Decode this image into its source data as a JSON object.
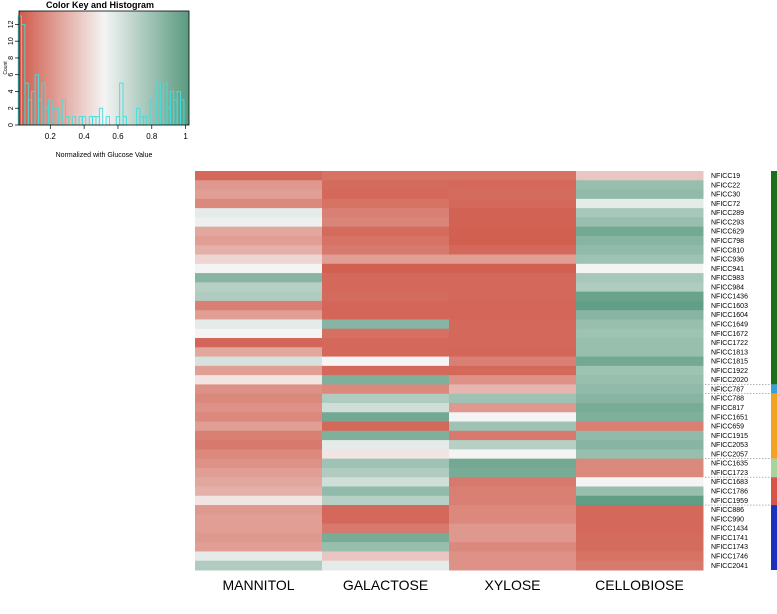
{
  "key": {
    "title": "Color Key and Histogram",
    "xlabel": "Normalized with Glucose Value",
    "ylabel": "Count",
    "xticks": [
      "0.2",
      "0.4",
      "0.6",
      "0.8",
      "1"
    ],
    "yticks": [
      "0",
      "2",
      "4",
      "6",
      "8",
      "10",
      "12"
    ],
    "histogram_color": "#3ee0de"
  },
  "chart_data": {
    "type": "heatmap",
    "colors": {
      "low": "#d05a4a",
      "mid": "#f4f4f4",
      "high": "#5a9a80"
    },
    "columns": [
      "MANNITOL",
      "GALACTOSE",
      "XYLOSE",
      "CELLOBIOSE"
    ],
    "rows": [
      "NFICC19",
      "NFICC22",
      "NFICC30",
      "NFICC72",
      "NFICC289",
      "NFICC293",
      "NFICC629",
      "NFICC798",
      "NFICC810",
      "NFICC936",
      "NFICC941",
      "NFICC983",
      "NFICC984",
      "NFICC1436",
      "NFICC1603",
      "NFICC1604",
      "NFICC1649",
      "NFICC1672",
      "NFICC1722",
      "NFICC1813",
      "NFICC1815",
      "NFICC1922",
      "NFICC2020",
      "NFICC787",
      "NFICC788",
      "NFICC817",
      "NFICC1651",
      "NFICC659",
      "NFICC1915",
      "NFICC2053",
      "NFICC2057",
      "NFICC1635",
      "NFICC1723",
      "NFICC1683",
      "NFICC1786",
      "NFICC1959",
      "NFICC886",
      "NFICC990",
      "NFICC1434",
      "NFICC1741",
      "NFICC1743",
      "NFICC1746",
      "NFICC2041"
    ],
    "values": [
      [
        0.05,
        0.08,
        0.08,
        0.35
      ],
      [
        0.2,
        0.06,
        0.05,
        0.8
      ],
      [
        0.22,
        0.05,
        0.06,
        0.82
      ],
      [
        0.15,
        0.08,
        0.05,
        0.55
      ],
      [
        0.55,
        0.12,
        0.03,
        0.75
      ],
      [
        0.52,
        0.14,
        0.03,
        0.8
      ],
      [
        0.25,
        0.06,
        0.02,
        0.92
      ],
      [
        0.22,
        0.08,
        0.02,
        0.85
      ],
      [
        0.28,
        0.1,
        0.05,
        0.82
      ],
      [
        0.4,
        0.22,
        0.22,
        0.78
      ],
      [
        0.5,
        0.02,
        0.02,
        0.5
      ],
      [
        0.85,
        0.05,
        0.05,
        0.75
      ],
      [
        0.7,
        0.05,
        0.05,
        0.72
      ],
      [
        0.72,
        0.06,
        0.05,
        0.95
      ],
      [
        0.12,
        0.04,
        0.04,
        0.97
      ],
      [
        0.22,
        0.04,
        0.04,
        0.85
      ],
      [
        0.55,
        0.85,
        0.05,
        0.8
      ],
      [
        0.5,
        0.07,
        0.05,
        0.78
      ],
      [
        0.04,
        0.05,
        0.05,
        0.8
      ],
      [
        0.25,
        0.05,
        0.04,
        0.8
      ],
      [
        0.6,
        0.5,
        0.12,
        0.92
      ],
      [
        0.22,
        0.05,
        0.05,
        0.78
      ],
      [
        0.45,
        0.88,
        0.18,
        0.8
      ],
      [
        0.18,
        0.15,
        0.3,
        0.82
      ],
      [
        0.15,
        0.72,
        0.78,
        0.85
      ],
      [
        0.18,
        0.62,
        0.2,
        0.9
      ],
      [
        0.15,
        0.92,
        0.5,
        0.88
      ],
      [
        0.22,
        0.05,
        0.78,
        0.12
      ],
      [
        0.12,
        0.88,
        0.1,
        0.82
      ],
      [
        0.1,
        0.55,
        0.7,
        0.85
      ],
      [
        0.15,
        0.45,
        0.5,
        0.8
      ],
      [
        0.18,
        0.78,
        0.92,
        0.15
      ],
      [
        0.22,
        0.72,
        0.9,
        0.15
      ],
      [
        0.25,
        0.62,
        0.1,
        0.5
      ],
      [
        0.28,
        0.82,
        0.12,
        0.8
      ],
      [
        0.45,
        0.7,
        0.12,
        0.98
      ],
      [
        0.2,
        0.05,
        0.15,
        0.05
      ],
      [
        0.22,
        0.05,
        0.15,
        0.05
      ],
      [
        0.22,
        0.1,
        0.2,
        0.05
      ],
      [
        0.2,
        0.9,
        0.2,
        0.06
      ],
      [
        0.22,
        0.8,
        0.15,
        0.06
      ],
      [
        0.55,
        0.35,
        0.18,
        0.08
      ],
      [
        0.72,
        0.55,
        0.18,
        0.1
      ]
    ],
    "side_bar": [
      {
        "color": "#1d6e1d",
        "rows": 23
      },
      {
        "color": "#3aa0d8",
        "rows": 1
      },
      {
        "color": "#f4a020",
        "rows": 7
      },
      {
        "color": "#a6d49c",
        "rows": 2
      },
      {
        "color": "#d85448",
        "rows": 3
      },
      {
        "color": "#1c30c0",
        "rows": 7
      }
    ],
    "histogram": [
      {
        "x": 0.02,
        "count": 13
      },
      {
        "x": 0.04,
        "count": 12
      },
      {
        "x": 0.06,
        "count": 5
      },
      {
        "x": 0.08,
        "count": 3
      },
      {
        "x": 0.1,
        "count": 4
      },
      {
        "x": 0.12,
        "count": 6
      },
      {
        "x": 0.14,
        "count": 3
      },
      {
        "x": 0.16,
        "count": 5
      },
      {
        "x": 0.18,
        "count": 2
      },
      {
        "x": 0.2,
        "count": 3
      },
      {
        "x": 0.22,
        "count": 2
      },
      {
        "x": 0.24,
        "count": 2
      },
      {
        "x": 0.26,
        "count": 1
      },
      {
        "x": 0.28,
        "count": 3
      },
      {
        "x": 0.3,
        "count": 1
      },
      {
        "x": 0.32,
        "count": 0
      },
      {
        "x": 0.34,
        "count": 1
      },
      {
        "x": 0.36,
        "count": 0
      },
      {
        "x": 0.38,
        "count": 1
      },
      {
        "x": 0.4,
        "count": 1
      },
      {
        "x": 0.42,
        "count": 0
      },
      {
        "x": 0.44,
        "count": 1
      },
      {
        "x": 0.46,
        "count": 1
      },
      {
        "x": 0.48,
        "count": 1
      },
      {
        "x": 0.5,
        "count": 2
      },
      {
        "x": 0.52,
        "count": 0
      },
      {
        "x": 0.54,
        "count": 1
      },
      {
        "x": 0.56,
        "count": 0
      },
      {
        "x": 0.58,
        "count": 0
      },
      {
        "x": 0.6,
        "count": 1
      },
      {
        "x": 0.62,
        "count": 5
      },
      {
        "x": 0.64,
        "count": 1
      },
      {
        "x": 0.66,
        "count": 0
      },
      {
        "x": 0.68,
        "count": 0
      },
      {
        "x": 0.7,
        "count": 0
      },
      {
        "x": 0.72,
        "count": 2
      },
      {
        "x": 0.74,
        "count": 1
      },
      {
        "x": 0.76,
        "count": 1
      },
      {
        "x": 0.78,
        "count": 0
      },
      {
        "x": 0.8,
        "count": 3
      },
      {
        "x": 0.82,
        "count": 4
      },
      {
        "x": 0.84,
        "count": 5
      },
      {
        "x": 0.86,
        "count": 3
      },
      {
        "x": 0.88,
        "count": 5
      },
      {
        "x": 0.9,
        "count": 2
      },
      {
        "x": 0.92,
        "count": 4
      },
      {
        "x": 0.94,
        "count": 3
      },
      {
        "x": 0.96,
        "count": 4
      },
      {
        "x": 0.98,
        "count": 3
      }
    ]
  }
}
